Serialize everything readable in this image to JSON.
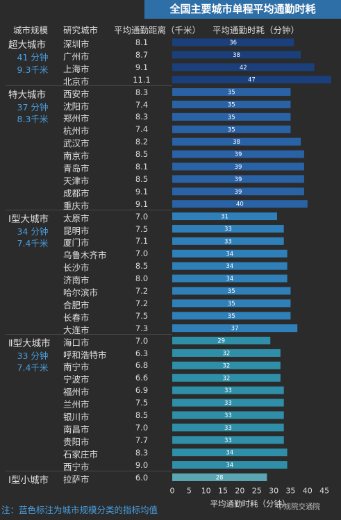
{
  "header": {
    "title": "全国主要城市单程平均通勤时耗",
    "col_scale": "城市规模",
    "col_city": "研究城市",
    "col_distance": "平均通勤距离（千米）",
    "col_time": "平均通勤时耗（分钟）"
  },
  "groups": [
    {
      "name": "超大城市",
      "avg_time": "41 分钟",
      "avg_dist": "9.3千米"
    },
    {
      "name": "特大城市",
      "avg_time": "37 分钟",
      "avg_dist": "8.3千米"
    },
    {
      "name": "Ⅰ型大城市",
      "avg_time": "34 分钟",
      "avg_dist": "7.4千米"
    },
    {
      "name": "Ⅱ型大城市",
      "avg_time": "33 分钟",
      "avg_dist": "7.4千米"
    },
    {
      "name": "Ⅰ型小城市",
      "avg_time": "",
      "avg_dist": ""
    }
  ],
  "chart_data": {
    "type": "bar",
    "orientation": "horizontal",
    "title": "全国主要城市单程平均通勤时耗",
    "xlabel": "平均通勤时耗（分钟）",
    "xlim": [
      0,
      45
    ],
    "xticks": [
      0,
      5,
      10,
      15,
      20,
      25,
      30,
      35,
      40,
      45
    ],
    "categories": [
      "深圳市",
      "广州市",
      "上海市",
      "北京市",
      "西安市",
      "沈阳市",
      "郑州市",
      "杭州市",
      "武汉市",
      "南京市",
      "青岛市",
      "天津市",
      "成都市",
      "重庆市",
      "太原市",
      "昆明市",
      "厦门市",
      "乌鲁木齐市",
      "长沙市",
      "济南市",
      "哈尔滨市",
      "合肥市",
      "长春市",
      "大连市",
      "海口市",
      "呼和浩特市",
      "南宁市",
      "宁波市",
      "福州市",
      "兰州市",
      "银川市",
      "南昌市",
      "贵阳市",
      "石家庄市",
      "西宁市",
      "拉萨市"
    ],
    "values": [
      36,
      38,
      42,
      47,
      35,
      35,
      35,
      35,
      38,
      39,
      39,
      39,
      39,
      40,
      31,
      33,
      33,
      34,
      34,
      34,
      35,
      35,
      35,
      37,
      29,
      32,
      32,
      32,
      33,
      33,
      33,
      33,
      33,
      34,
      34,
      28
    ],
    "distance_km": [
      "8.1",
      "8.7",
      "9.1",
      "11.1",
      "8.3",
      "7.4",
      "8.3",
      "7.4",
      "8.2",
      "8.5",
      "8.1",
      "8.5",
      "9.1",
      "9.1",
      "7.0",
      "7.5",
      "7.1",
      "7.0",
      "8.5",
      "8.0",
      "7.2",
      "7.2",
      "7.5",
      "7.3",
      "7.0",
      "6.3",
      "6.8",
      "6.6",
      "6.9",
      "7.5",
      "8.5",
      "7.0",
      "7.7",
      "8.3",
      "9.0",
      "6.0"
    ],
    "group_sizes": [
      4,
      10,
      10,
      11,
      1
    ],
    "colors": {
      "超大城市": "#1a3f7a",
      "特大城市": "#2a62a6",
      "Ⅰ型大城市": "#2f7fb8",
      "Ⅱ型大城市": "#2f8fa8",
      "Ⅰ型小城市": "#5aa6b3"
    },
    "grid": false,
    "legend": "none"
  },
  "footnote": "注：蓝色标注为城市规模分类的指标均值",
  "watermark": "中规院交通院"
}
